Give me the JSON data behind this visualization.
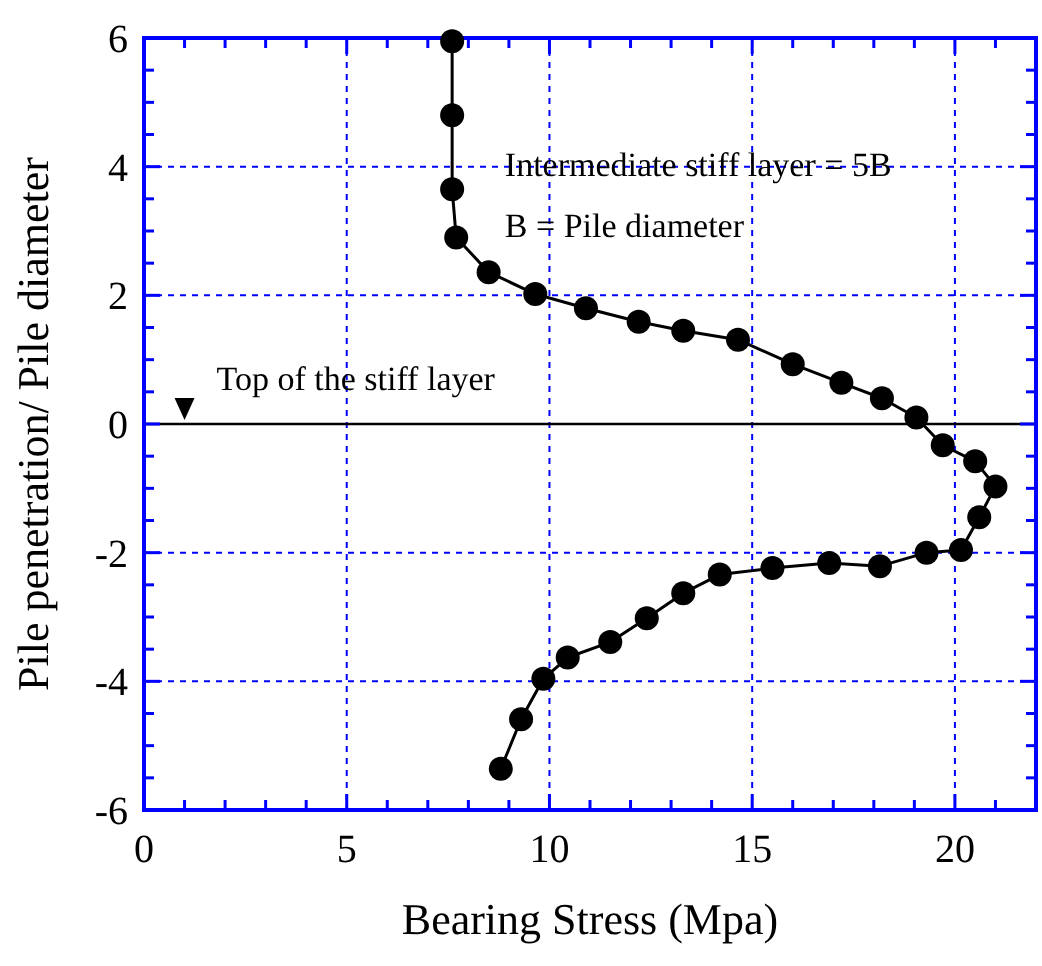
{
  "chart_data": {
    "type": "line",
    "xlabel": "Bearing Stress (Mpa)",
    "ylabel": "Pile penetration/ Pile diameter",
    "x": [
      7.6,
      7.6,
      7.6,
      7.7,
      8.5,
      9.65,
      10.9,
      12.2,
      13.3,
      14.65,
      16.0,
      17.2,
      18.2,
      19.05,
      19.7,
      20.5,
      21.0,
      20.6,
      20.15,
      19.3,
      18.15,
      16.9,
      15.5,
      14.2,
      13.3,
      12.4,
      11.5,
      10.45,
      9.85,
      9.3,
      8.8
    ],
    "series": [
      {
        "color": "#000000",
        "values": [
          5.95,
          4.8,
          3.65,
          2.9,
          2.36,
          2.02,
          1.8,
          1.59,
          1.45,
          1.31,
          0.93,
          0.64,
          0.4,
          0.1,
          -0.33,
          -0.58,
          -0.97,
          -1.45,
          -1.96,
          -2.0,
          -2.21,
          -2.16,
          -2.24,
          -2.34,
          -2.63,
          -3.02,
          -3.39,
          -3.63,
          -3.96,
          -4.59,
          -5.36
        ]
      }
    ],
    "marker": "circle",
    "line_style": "solid",
    "grid": true,
    "xlim": [
      0,
      22
    ],
    "ylim": [
      -6,
      6
    ],
    "xticks": [
      0,
      {
        "value": 1,
        "label": null
      },
      {
        "value": 2,
        "label": null
      },
      {
        "value": 3,
        "label": null
      },
      {
        "value": 4,
        "label": null
      },
      5,
      {
        "value": 6,
        "label": null
      },
      {
        "value": 7,
        "label": null
      },
      {
        "value": 8,
        "label": null
      },
      {
        "value": 9,
        "label": null
      },
      10,
      {
        "value": 11,
        "label": null
      },
      {
        "value": 12,
        "label": null
      },
      {
        "value": 13,
        "label": null
      },
      {
        "value": 14,
        "label": null
      },
      15,
      {
        "value": 16,
        "label": null
      },
      {
        "value": 17,
        "label": null
      },
      {
        "value": 18,
        "label": null
      },
      {
        "value": 19,
        "label": null
      },
      20,
      {
        "value": 21,
        "label": null
      }
    ],
    "yticks": [
      -6,
      {
        "value": -5.5,
        "label": null
      },
      {
        "value": -5,
        "label": null
      },
      {
        "value": -4.5,
        "label": null
      },
      -4,
      {
        "value": -3.5,
        "label": null
      },
      {
        "value": -3,
        "label": null
      },
      {
        "value": -2.5,
        "label": null
      },
      -2,
      {
        "value": -1.5,
        "label": null
      },
      {
        "value": -1,
        "label": null
      },
      {
        "value": -0.5,
        "label": null
      },
      0,
      {
        "value": 0.5,
        "label": null
      },
      {
        "value": 1,
        "label": null
      },
      {
        "value": 1.5,
        "label": null
      },
      2,
      {
        "value": 2.5,
        "label": null
      },
      {
        "value": 3,
        "label": null
      },
      {
        "value": 3.5,
        "label": null
      },
      4,
      {
        "value": 4.5,
        "label": null
      },
      {
        "value": 5,
        "label": null
      },
      {
        "value": 5.5,
        "label": null
      },
      6
    ],
    "ref_lines": [
      {
        "axis": "y",
        "value": 0,
        "color": "#000000",
        "line_style": "solid"
      }
    ],
    "annotations": [
      {
        "text": "Top of the stiff layer",
        "x": 1,
        "y": 0
      },
      "Intermediate stiff layer = 5B",
      "B = Pile diameter"
    ]
  }
}
